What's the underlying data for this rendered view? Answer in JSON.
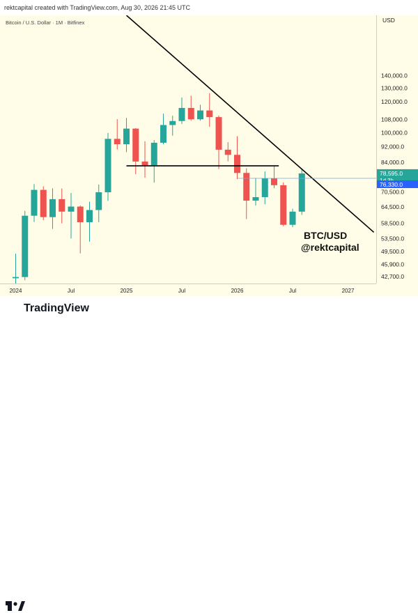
{
  "header": {
    "caption": "rektcapital created with TradingView.com, Aug 30, 2026 21:45 UTC"
  },
  "branding": {
    "logo_name": "tradingview-logo-icon",
    "name": "TradingView"
  },
  "colors": {
    "up": "#26a69a",
    "down": "#ef5350",
    "background": "#fffde7",
    "price_up_label": "#26a69a",
    "price_down_label": "#2962ff"
  },
  "chart_data": {
    "type": "candlestick",
    "title": "Bitcoin / U.S. Dollar · 1M · Bitfinex",
    "currency": "USD",
    "y_scale": "log",
    "ylim": [
      41000,
      200000
    ],
    "y_ticks": [
      {
        "value": 140000,
        "label": "140,000.0"
      },
      {
        "value": 130000,
        "label": "130,000.0"
      },
      {
        "value": 120000,
        "label": "120,000.0"
      },
      {
        "value": 108000,
        "label": "108,000.0"
      },
      {
        "value": 100000,
        "label": "100,000.0"
      },
      {
        "value": 92000,
        "label": "92,000.0"
      },
      {
        "value": 84000,
        "label": "84,000.0"
      },
      {
        "value": 70500,
        "label": "70,500.0"
      },
      {
        "value": 64500,
        "label": "64,500.0"
      },
      {
        "value": 58500,
        "label": "58,500.0"
      },
      {
        "value": 53500,
        "label": "53,500.0"
      },
      {
        "value": 49500,
        "label": "49,500.0"
      },
      {
        "value": 45900,
        "label": "45,900.0"
      },
      {
        "value": 42700,
        "label": "42,700.0"
      }
    ],
    "x_ticks": [
      {
        "index": 0,
        "label": "2024"
      },
      {
        "index": 6,
        "label": "Jul"
      },
      {
        "index": 12,
        "label": "2025"
      },
      {
        "index": 18,
        "label": "Jul"
      },
      {
        "index": 24,
        "label": "2026"
      },
      {
        "index": 30,
        "label": "Jul"
      },
      {
        "index": 36,
        "label": "2027"
      }
    ],
    "candles": [
      {
        "date": "2024-01",
        "o": 42300,
        "h": 48900,
        "l": 38500,
        "c": 42600
      },
      {
        "date": "2024-02",
        "o": 42600,
        "h": 63000,
        "l": 41800,
        "c": 61200
      },
      {
        "date": "2024-03",
        "o": 61200,
        "h": 73800,
        "l": 59000,
        "c": 71300
      },
      {
        "date": "2024-04",
        "o": 71300,
        "h": 72800,
        "l": 59600,
        "c": 60700
      },
      {
        "date": "2024-05",
        "o": 60700,
        "h": 72000,
        "l": 56600,
        "c": 67500
      },
      {
        "date": "2024-06",
        "o": 67500,
        "h": 71900,
        "l": 58500,
        "c": 62700
      },
      {
        "date": "2024-07",
        "o": 62700,
        "h": 70000,
        "l": 53500,
        "c": 64600
      },
      {
        "date": "2024-08",
        "o": 64600,
        "h": 65000,
        "l": 49000,
        "c": 58900
      },
      {
        "date": "2024-09",
        "o": 58900,
        "h": 66500,
        "l": 52500,
        "c": 63300
      },
      {
        "date": "2024-10",
        "o": 63300,
        "h": 73600,
        "l": 58900,
        "c": 70300
      },
      {
        "date": "2024-11",
        "o": 70300,
        "h": 99800,
        "l": 66800,
        "c": 96400
      },
      {
        "date": "2024-12",
        "o": 96400,
        "h": 108300,
        "l": 90500,
        "c": 93400
      },
      {
        "date": "2025-01",
        "o": 93400,
        "h": 109100,
        "l": 89100,
        "c": 102400
      },
      {
        "date": "2025-02",
        "o": 102400,
        "h": 102700,
        "l": 78200,
        "c": 84300
      },
      {
        "date": "2025-03",
        "o": 84300,
        "h": 95000,
        "l": 76600,
        "c": 82500
      },
      {
        "date": "2025-04",
        "o": 82500,
        "h": 95700,
        "l": 74400,
        "c": 94200
      },
      {
        "date": "2025-05",
        "o": 94200,
        "h": 111900,
        "l": 93400,
        "c": 104600
      },
      {
        "date": "2025-06",
        "o": 104600,
        "h": 110500,
        "l": 98200,
        "c": 107100
      },
      {
        "date": "2025-07",
        "o": 107100,
        "h": 123100,
        "l": 105300,
        "c": 115700
      },
      {
        "date": "2025-08",
        "o": 115700,
        "h": 124400,
        "l": 107300,
        "c": 108200
      },
      {
        "date": "2025-09",
        "o": 108200,
        "h": 117900,
        "l": 107300,
        "c": 114000
      },
      {
        "date": "2025-10",
        "o": 114000,
        "h": 126200,
        "l": 103500,
        "c": 109600
      },
      {
        "date": "2025-11",
        "o": 109600,
        "h": 110600,
        "l": 80600,
        "c": 90400
      },
      {
        "date": "2025-12",
        "o": 90400,
        "h": 94500,
        "l": 84400,
        "c": 87700
      },
      {
        "date": "2026-01",
        "o": 87700,
        "h": 97900,
        "l": 76000,
        "c": 78800
      },
      {
        "date": "2026-02",
        "o": 78800,
        "h": 81000,
        "l": 60000,
        "c": 66900
      },
      {
        "date": "2026-03",
        "o": 66900,
        "h": 76500,
        "l": 65000,
        "c": 68300
      },
      {
        "date": "2026-04",
        "o": 68300,
        "h": 79500,
        "l": 65500,
        "c": 76300
      },
      {
        "date": "2026-05",
        "o": 76300,
        "h": 82000,
        "l": 72000,
        "c": 73300
      },
      {
        "date": "2026-06",
        "o": 73300,
        "h": 74500,
        "l": 57500,
        "c": 58000
      },
      {
        "date": "2026-07",
        "o": 58000,
        "h": 63800,
        "l": 57200,
        "c": 62700
      },
      {
        "date": "2026-08",
        "o": 62700,
        "h": 80800,
        "l": 61500,
        "c": 78595
      }
    ],
    "lines": [
      {
        "name": "downtrend",
        "from": {
          "index": 12,
          "price": 200000
        },
        "to": {
          "index": 38.8,
          "price": 55500
        }
      },
      {
        "name": "support",
        "from": {
          "index": 12,
          "price": 82200
        },
        "to": {
          "index": 28.5,
          "price": 82200
        }
      }
    ],
    "price_labels": [
      {
        "value": 78595,
        "label": "78,595.0",
        "sub": "1d 3h",
        "kind": "up"
      },
      {
        "value": 76330,
        "label": "76,330.0",
        "kind": "down"
      }
    ],
    "annotation": [
      "BTC/USD",
      "@rektcapital"
    ]
  }
}
